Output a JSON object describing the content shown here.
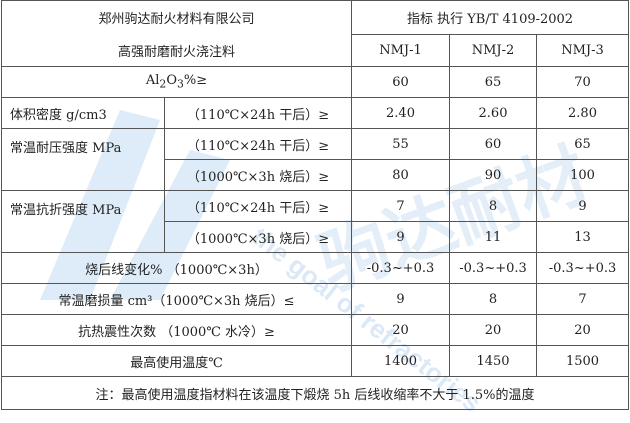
{
  "header": {
    "company": "郑州驹达耐火材料有限公司",
    "product": "高强耐磨耐火浇注料",
    "standard": "指标  执行 YB/T 4109-2002",
    "grades": [
      "NMJ-1",
      "NMJ-2",
      "NMJ-3"
    ]
  },
  "rows": [
    {
      "label": "Al₂O₃%≥",
      "values": [
        "60",
        "65",
        "70"
      ]
    },
    {
      "label": "体积密度 g/cm3",
      "cond": "（110℃×24h 干后）≥",
      "values": [
        "2.40",
        "2.60",
        "2.80"
      ]
    },
    {
      "label": "常温耐压强度 MPa",
      "cond": "（110℃×24h 干后）≥",
      "values": [
        "55",
        "60",
        "65"
      ]
    },
    {
      "cond": "（1000℃×3h 烧后）≥",
      "values": [
        "80",
        "90",
        "100"
      ]
    },
    {
      "label": "常温抗折强度 MPa",
      "cond": "（110℃×24h 干后）≥",
      "values": [
        "7",
        "8",
        "9"
      ]
    },
    {
      "cond": "（1000℃×3h 烧后）≥",
      "values": [
        "9",
        "11",
        "13"
      ]
    },
    {
      "label": "烧后线变化% （1000℃×3h）",
      "values": [
        "-0.3~+0.3",
        "-0.3~+0.3",
        "-0.3~+0.3"
      ]
    },
    {
      "label": "常温磨损量 cm³（1000℃×3h 烧后）≤",
      "values": [
        "9",
        "8",
        "7"
      ]
    },
    {
      "label": "抗热震性次数 （1000℃ 水冷）≥",
      "values": [
        "20",
        "20",
        "20"
      ]
    },
    {
      "label": "最高使用温度℃",
      "values": [
        "1400",
        "1450",
        "1500"
      ]
    }
  ],
  "note": "注：最高使用温度指材料在该温度下煅烧 5h 后线收缩率不大于 1.5%的温度",
  "watermark": {
    "text": "the goal of refractories",
    "color": "#4a90d9"
  }
}
